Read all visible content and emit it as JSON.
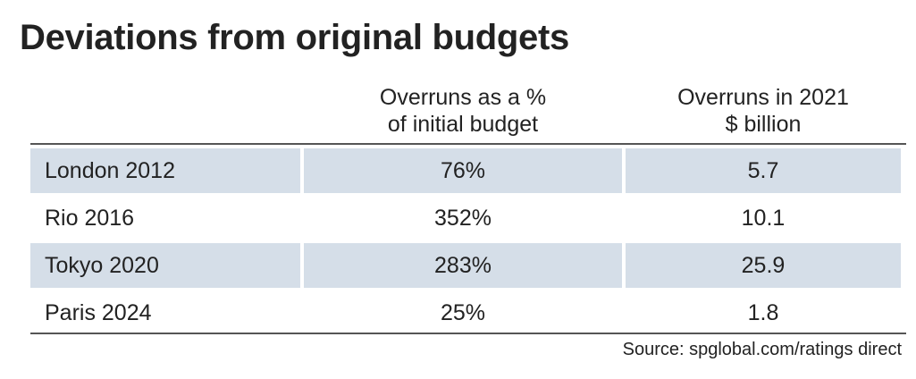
{
  "title": "Deviations from original budgets",
  "source": "Source: spglobal.com/ratings direct",
  "chart_data": {
    "type": "table",
    "title": "Deviations from original budgets",
    "columns": [
      {
        "label_lines": [
          "",
          ""
        ]
      },
      {
        "label_lines": [
          "Overruns as a %",
          "of initial budget"
        ]
      },
      {
        "label_lines": [
          "Overruns in 2021",
          "$ billion"
        ]
      }
    ],
    "rows": [
      {
        "name": "London 2012",
        "pct": "76%",
        "pct_value": 76,
        "usd": "5.7",
        "usd_value": 5.7,
        "shaded": true
      },
      {
        "name": "Rio 2016",
        "pct": "352%",
        "pct_value": 352,
        "usd": "10.1",
        "usd_value": 10.1,
        "shaded": false
      },
      {
        "name": "Tokyo 2020",
        "pct": "283%",
        "pct_value": 283,
        "usd": "25.9",
        "usd_value": 25.9,
        "shaded": true
      },
      {
        "name": "Paris 2024",
        "pct": "25%",
        "pct_value": 25,
        "usd": "1.8",
        "usd_value": 1.8,
        "shaded": false
      }
    ],
    "colors": {
      "row_shade": "#d5dee8",
      "text": "#222222",
      "rule": "#555555"
    }
  }
}
